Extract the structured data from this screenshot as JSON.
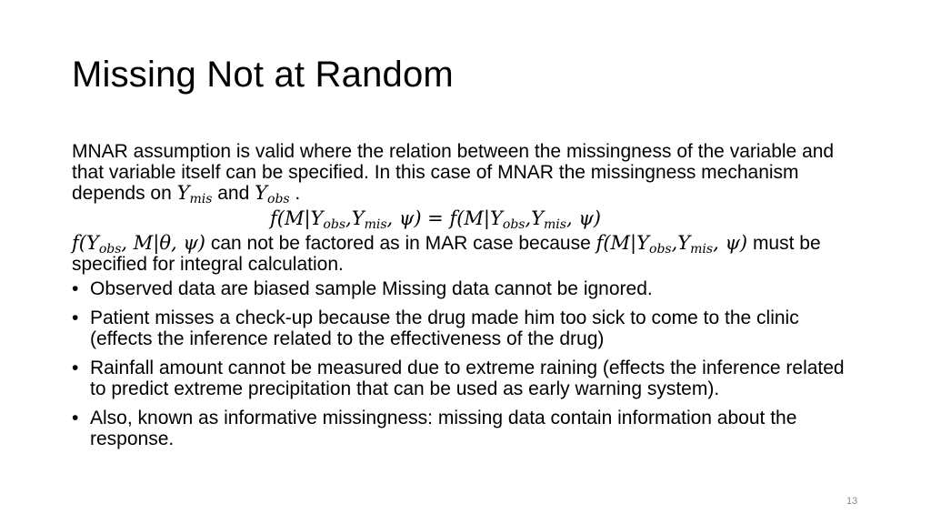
{
  "slide": {
    "title": "Missing Not at Random",
    "intro": {
      "text_before": "MNAR assumption is valid where the relation between the missingness of the variable and that variable itself can be specified. In this case of MNAR the missingness mechanism depends on ",
      "y_mis": {
        "base": "Y",
        "sub": "mis"
      },
      "and": " and ",
      "y_obs": {
        "base": "Y",
        "sub": "obs"
      },
      "end": " ."
    },
    "equation": {
      "lhs_open": "f(M|",
      "y_obs_base": "Y",
      "y_obs_sub": "obs",
      "comma1": ",",
      "y_mis_base": "Y",
      "y_mis_sub": "mis",
      "lhs_close": ", ψ) = ",
      "rhs_open": "f(M|",
      "close": ", ψ)"
    },
    "factor_sentence": {
      "expr_open": "f(",
      "y_obs_base": "Y",
      "y_obs_sub": "obs",
      "expr_rest": ", M|θ, ψ)",
      "text_middle": " can not be factored as in MAR case because ",
      "expr2_open": "f(M|",
      "y_mis_base": "Y",
      "y_mis_sub": "mis",
      "expr2_close": ", ψ)",
      "comma": ",",
      "text_end": " must be specified for integral calculation."
    },
    "bullet_char": "•",
    "bullets": [
      "Observed data are biased sample Missing data cannot be ignored.",
      "Patient misses a check-up because the drug made him too sick to come to the clinic (effects the inference related to the effectiveness of the drug)",
      "Rainfall amount cannot be measured due to extreme raining (effects the inference related to predict extreme precipitation that can be used as early warning system).",
      "Also, known as informative missingness: missing data contain information about the response."
    ],
    "page_number": "13"
  }
}
